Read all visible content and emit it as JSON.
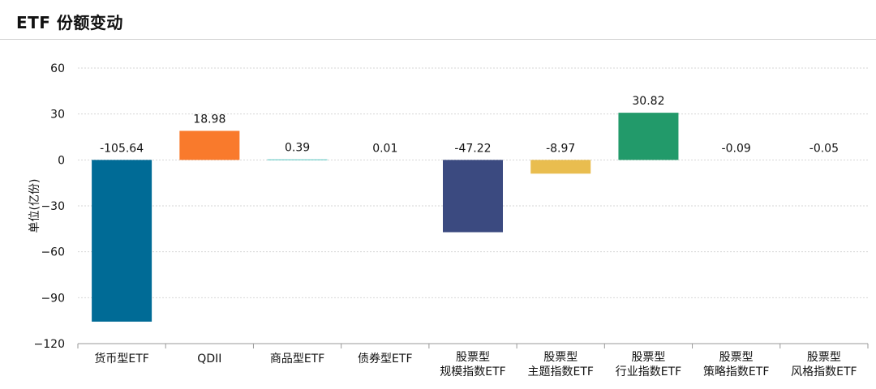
{
  "chart_data": {
    "type": "bar",
    "title": "ETF 份额变动",
    "ylabel": "单位(亿份)",
    "xlabel": "",
    "ylim": [
      -120,
      60
    ],
    "yticks": [
      60,
      30,
      0,
      -30,
      -60,
      -90,
      -120
    ],
    "ytick_labels": [
      "60",
      "30",
      "0",
      "−30",
      "−60",
      "−90",
      "−120"
    ],
    "grid": true,
    "categories": [
      "货币型ETF",
      "QDII",
      "商品型ETF",
      "债券型ETF",
      "股票型\n规模指数ETF",
      "股票型\n主题指数ETF",
      "股票型\n行业指数ETF",
      "股票型\n策略指数ETF",
      "股票型\n风格指数ETF"
    ],
    "values": [
      -105.64,
      18.98,
      0.39,
      0.01,
      -47.22,
      -8.97,
      30.82,
      -0.09,
      -0.05
    ],
    "labels": [
      "-105.64",
      "18.98",
      "0.39",
      "0.01",
      "-47.22",
      "-8.97",
      "30.82",
      "-0.09",
      "-0.05"
    ],
    "colors": [
      "#006b96",
      "#f97a2c",
      "#58c6c1",
      "#6a6a6a",
      "#3b4a80",
      "#e9bd4f",
      "#229a6a",
      "#8a8a8a",
      "#8a8a8a"
    ]
  }
}
